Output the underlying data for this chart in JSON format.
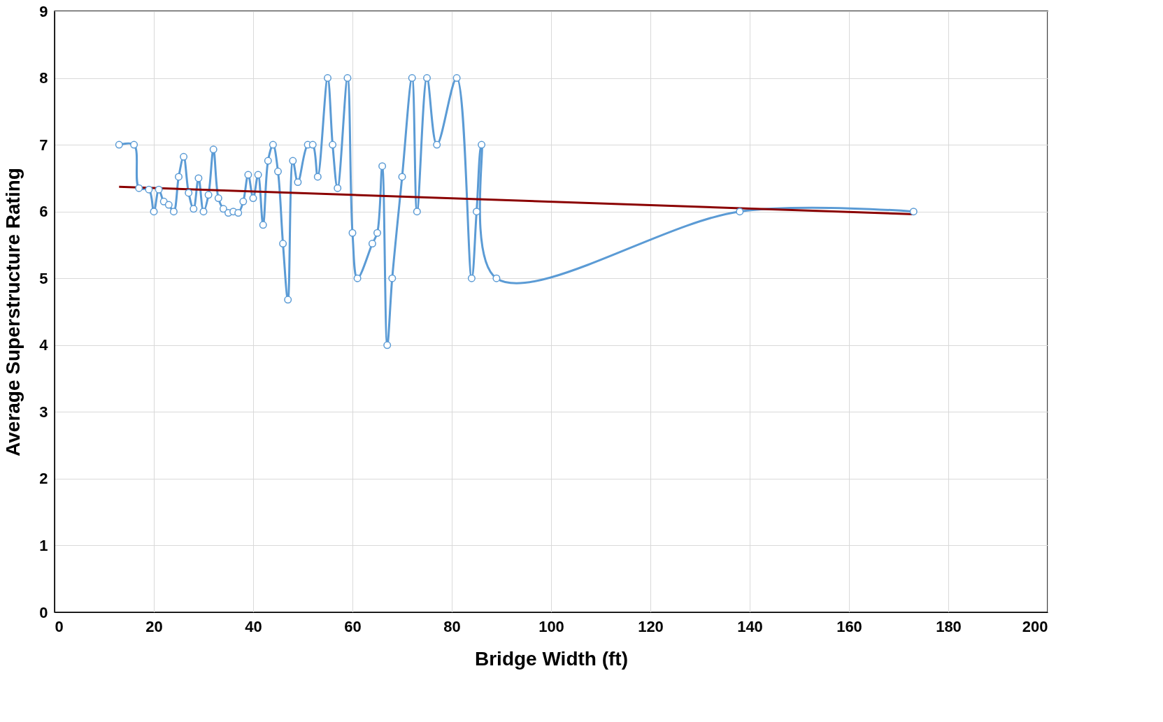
{
  "chart_data": {
    "type": "line",
    "xlabel": "Bridge Width (ft)",
    "ylabel": "Average Superstructure Rating",
    "xlim": [
      0,
      200
    ],
    "xticks": [
      0,
      20,
      40,
      60,
      80,
      100,
      120,
      140,
      160,
      180,
      200
    ],
    "ylim": [
      0,
      9
    ],
    "yticks": [
      0,
      1,
      2,
      3,
      4,
      5,
      6,
      7,
      8,
      9
    ],
    "grid": true,
    "legend": false,
    "series": [
      {
        "color": "#5b9bd5",
        "marker": "circle",
        "x": [
          13,
          16,
          17,
          19,
          20,
          21,
          22,
          23,
          24,
          25,
          26,
          27,
          28,
          29,
          30,
          31,
          32,
          33,
          34,
          35,
          36,
          37,
          38,
          39,
          40,
          41,
          42,
          43,
          44,
          45,
          46,
          47,
          48,
          49,
          51,
          52,
          53,
          55,
          56,
          57,
          59,
          60,
          61,
          64,
          65,
          66,
          67,
          68,
          70,
          72,
          73,
          75,
          77,
          81,
          84,
          85,
          86,
          89,
          138,
          173
        ],
        "values": [
          7.0,
          7.0,
          6.35,
          6.33,
          6.0,
          6.33,
          6.15,
          6.1,
          6.0,
          6.52,
          6.82,
          6.28,
          6.04,
          6.5,
          6.0,
          6.25,
          6.93,
          6.2,
          6.04,
          5.98,
          6.0,
          5.98,
          6.15,
          6.55,
          6.2,
          6.55,
          5.8,
          6.76,
          7.0,
          6.6,
          5.52,
          4.68,
          6.76,
          6.44,
          7.0,
          7.0,
          6.52,
          8.0,
          7.0,
          6.35,
          8.0,
          5.68,
          5.0,
          5.52,
          5.68,
          6.68,
          4.0,
          5.0,
          6.52,
          8.0,
          6.0,
          8.0,
          7.0,
          8.0,
          5.0,
          6.0,
          7.0,
          5.0,
          6.0,
          6.0
        ]
      },
      {
        "color": "#8b0000",
        "marker": "none",
        "x": [
          13,
          173
        ],
        "values": [
          6.37,
          5.96
        ]
      }
    ]
  }
}
